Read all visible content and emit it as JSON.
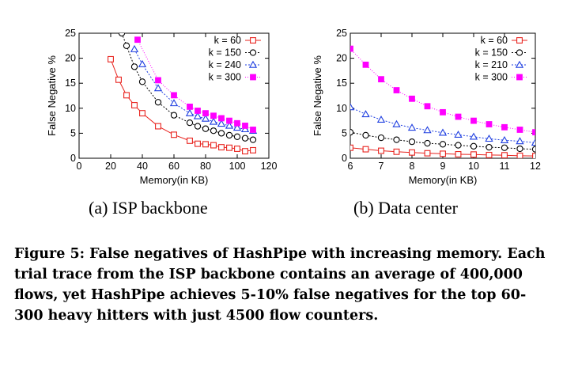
{
  "figure": {
    "label": "Figure 5:",
    "caption": "False negatives of HashPipe with increasing memory. Each trial trace from the ISP backbone contains an average of 400,000 flows, yet HashPipe achieves 5-10% false negatives for the top 60-300 heavy hitters with just 4500 flow counters."
  },
  "chart_data": [
    {
      "type": "line",
      "panel_label": "(a) ISP backbone",
      "xlabel": "Memory(in KB)",
      "ylabel": "False Negative %",
      "xlim": [
        0,
        120
      ],
      "ylim": [
        0,
        25
      ],
      "xticks": [
        0,
        20,
        40,
        60,
        80,
        100,
        120
      ],
      "yticks": [
        0,
        5,
        10,
        15,
        20,
        25
      ],
      "legend_position": "top-right",
      "series": [
        {
          "name": "k = 60",
          "color": "#e8231e",
          "marker": "square-open",
          "x": [
            20,
            25,
            30,
            35,
            40,
            50,
            60,
            70,
            75,
            80,
            85,
            90,
            95,
            100,
            105,
            110
          ],
          "y": [
            19.8,
            15.7,
            12.6,
            10.6,
            9.0,
            6.4,
            4.7,
            3.5,
            2.9,
            2.8,
            2.6,
            2.2,
            2.1,
            1.9,
            1.4,
            1.6
          ]
        },
        {
          "name": "k = 150",
          "color": "#000000",
          "marker": "circle-open",
          "x": [
            27,
            30,
            35,
            40,
            50,
            60,
            70,
            75,
            80,
            85,
            90,
            95,
            100,
            105,
            110
          ],
          "y": [
            25.0,
            22.5,
            18.3,
            15.3,
            11.2,
            8.6,
            7.1,
            6.4,
            5.9,
            5.5,
            5.0,
            4.6,
            4.3,
            4.0,
            3.7
          ]
        },
        {
          "name": "k = 240",
          "color": "#1f3fe0",
          "marker": "triangle-open",
          "x": [
            35,
            40,
            50,
            60,
            70,
            75,
            80,
            85,
            90,
            95,
            100,
            105,
            110
          ],
          "y": [
            21.8,
            18.8,
            14.0,
            11.0,
            9.0,
            8.4,
            7.9,
            7.3,
            6.9,
            6.5,
            6.1,
            5.8,
            5.5
          ]
        },
        {
          "name": "k = 300",
          "color": "#ff00ff",
          "marker": "square-filled",
          "x": [
            37,
            50,
            60,
            70,
            75,
            80,
            85,
            90,
            95,
            100,
            105,
            110
          ],
          "y": [
            23.7,
            15.6,
            12.6,
            10.3,
            9.5,
            9.0,
            8.5,
            8.0,
            7.5,
            7.0,
            6.5,
            5.7
          ]
        }
      ]
    },
    {
      "type": "line",
      "panel_label": "(b) Data center",
      "xlabel": "Memory(in KB)",
      "ylabel": "False Negative %",
      "xlim": [
        6,
        12
      ],
      "ylim": [
        0,
        25
      ],
      "xticks": [
        6,
        7,
        8,
        9,
        10,
        11,
        12
      ],
      "yticks": [
        0,
        5,
        10,
        15,
        20,
        25
      ],
      "legend_position": "top-right",
      "series": [
        {
          "name": "k = 60",
          "color": "#e8231e",
          "marker": "square-open",
          "x": [
            6,
            6.5,
            7,
            7.5,
            8,
            8.5,
            9,
            9.5,
            10,
            10.5,
            11,
            11.5,
            12
          ],
          "y": [
            2.1,
            1.8,
            1.5,
            1.3,
            1.15,
            1.0,
            0.9,
            0.8,
            0.75,
            0.65,
            0.6,
            0.5,
            0.45
          ]
        },
        {
          "name": "k = 150",
          "color": "#000000",
          "marker": "circle-open",
          "x": [
            6,
            6.5,
            7,
            7.5,
            8,
            8.5,
            9,
            9.5,
            10,
            10.5,
            11,
            11.5,
            12
          ],
          "y": [
            5.2,
            4.6,
            4.1,
            3.7,
            3.3,
            3.0,
            2.8,
            2.6,
            2.4,
            2.2,
            2.1,
            1.9,
            1.8
          ]
        },
        {
          "name": "k = 210",
          "color": "#1f3fe0",
          "marker": "triangle-open",
          "x": [
            6,
            6.5,
            7,
            7.5,
            8,
            8.5,
            9,
            9.5,
            10,
            10.5,
            11,
            11.5,
            12
          ],
          "y": [
            10.2,
            8.8,
            7.7,
            6.8,
            6.1,
            5.6,
            5.1,
            4.7,
            4.3,
            3.9,
            3.6,
            3.4,
            3.1
          ]
        },
        {
          "name": "k = 300",
          "color": "#ff00ff",
          "marker": "square-filled",
          "x": [
            6,
            6.5,
            7,
            7.5,
            8,
            8.5,
            9,
            9.5,
            10,
            10.5,
            11,
            11.5,
            12
          ],
          "y": [
            21.9,
            18.7,
            15.8,
            13.6,
            11.9,
            10.4,
            9.2,
            8.3,
            7.5,
            6.8,
            6.2,
            5.7,
            5.2
          ]
        }
      ]
    }
  ]
}
